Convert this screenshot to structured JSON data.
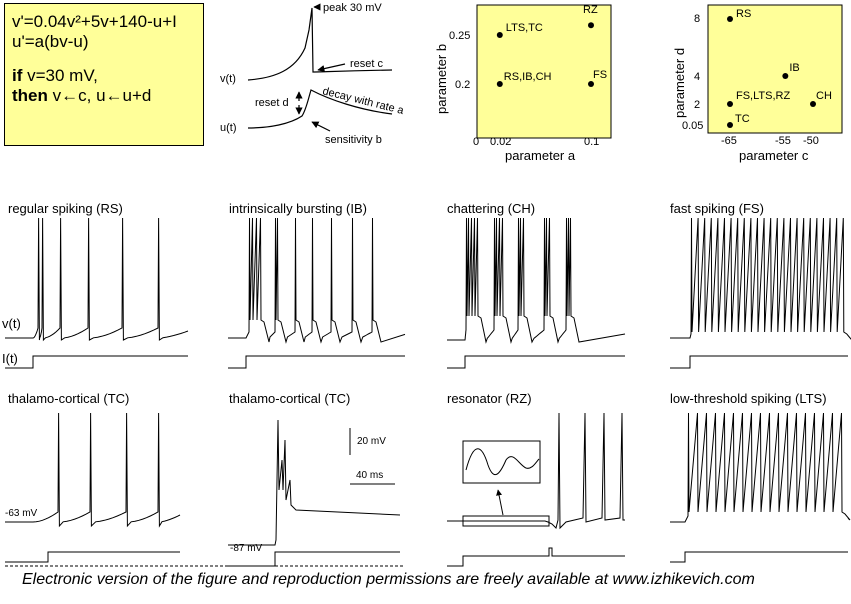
{
  "equations": {
    "eq1": "v'=0.04v²+5v+140-u+I",
    "eq2": "u'=a(bv-u)",
    "cond_if": "if",
    "cond_text": "v=30 mV,",
    "cond_then": "then",
    "cond_then_text": "v←c,   u←u+d"
  },
  "schematic": {
    "peak": "peak 30 mV",
    "reset_c": "reset  c",
    "v_label": "v(t)",
    "reset_d": "reset  d",
    "decay": "decay with  rate  a",
    "u_label": "u(t)",
    "sensitivity": "sensitivity  b"
  },
  "plot_ab": {
    "xlabel": "parameter a",
    "ylabel": "parameter b",
    "xticks": [
      "0",
      "0.02",
      "0.1"
    ],
    "yticks": [
      "0.2",
      "0.25"
    ],
    "points": [
      {
        "label": "LTS,TC",
        "a": 0.02,
        "b": 0.25
      },
      {
        "label": "RS,IB,CH",
        "a": 0.02,
        "b": 0.2
      },
      {
        "label": "RZ",
        "a": 0.1,
        "b": 0.26
      },
      {
        "label": "FS",
        "a": 0.1,
        "b": 0.2
      }
    ]
  },
  "plot_cd": {
    "xlabel": "parameter c",
    "ylabel": "parameter d",
    "xticks": [
      "-65",
      "-55",
      "-50"
    ],
    "yticks": [
      "0.05",
      "2",
      "4",
      "8"
    ],
    "points": [
      {
        "label": "RS",
        "c": -65,
        "d": 8
      },
      {
        "label": "IB",
        "c": -55,
        "d": 4
      },
      {
        "label": "CH",
        "c": -50,
        "d": 2
      },
      {
        "label": "FS,LTS,RZ",
        "c": -65,
        "d": 2
      },
      {
        "label": "TC",
        "c": -65,
        "d": 0.05
      }
    ]
  },
  "traces": {
    "rs": "regular spiking (RS)",
    "ib": "intrinsically bursting (IB)",
    "ch": "chattering (CH)",
    "fs": "fast spiking (FS)",
    "tc1": "thalamo-cortical (TC)",
    "tc2": "thalamo-cortical (TC)",
    "rz": "resonator (RZ)",
    "lts": "low-threshold spiking (LTS)",
    "v_label": "v(t)",
    "i_label": "I(t)",
    "tc1_rest": "-63 mV",
    "tc2_rest": "-87 mV",
    "scale_mv": "20 mV",
    "scale_ms": "40 ms"
  },
  "footer": "Electronic version of the figure and reproduction permissions are freely available at www.izhikevich.com"
}
